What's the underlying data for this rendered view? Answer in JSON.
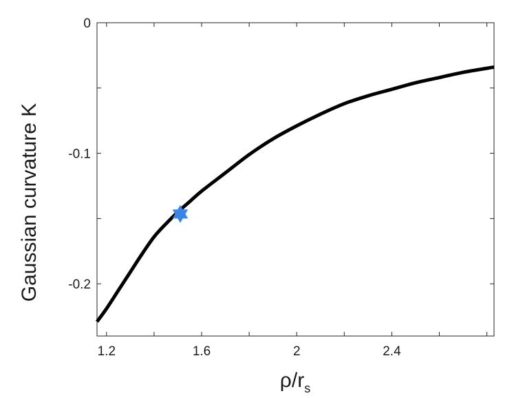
{
  "chart_data": {
    "type": "line",
    "xlabel": "ρ/r",
    "xlabel_subscript": "s",
    "ylabel": "Gaussian curvature K",
    "xlim": [
      1.16,
      2.83
    ],
    "ylim": [
      -0.24,
      0
    ],
    "x_ticks": [
      1.2,
      1.4,
      1.6,
      1.8,
      2.0,
      2.2,
      2.4,
      2.6,
      2.8
    ],
    "x_tick_labels": [
      "1.2",
      "",
      "1.6",
      "",
      "2",
      "",
      "2.4",
      "",
      ""
    ],
    "y_ticks": [
      0,
      -0.05,
      -0.1,
      -0.15,
      -0.2
    ],
    "y_tick_labels": [
      "0",
      "",
      "-0.1",
      "",
      "-0.2"
    ],
    "grid": false,
    "series": [
      {
        "color": "#000000",
        "x": [
          1.16,
          1.2,
          1.25,
          1.3,
          1.35,
          1.4,
          1.45,
          1.5,
          1.55,
          1.6,
          1.7,
          1.8,
          1.9,
          2.0,
          2.1,
          2.2,
          2.3,
          2.4,
          2.5,
          2.6,
          2.7,
          2.83
        ],
        "y": [
          -0.229,
          -0.219,
          -0.205,
          -0.191,
          -0.177,
          -0.164,
          -0.154,
          -0.145,
          -0.137,
          -0.129,
          -0.115,
          -0.101,
          -0.089,
          -0.079,
          -0.07,
          -0.062,
          -0.056,
          -0.051,
          -0.046,
          -0.042,
          -0.038,
          -0.034
        ]
      }
    ],
    "marker": {
      "shape": "star",
      "color": "#3a86e8",
      "x": 1.51,
      "y": -0.1465
    }
  }
}
